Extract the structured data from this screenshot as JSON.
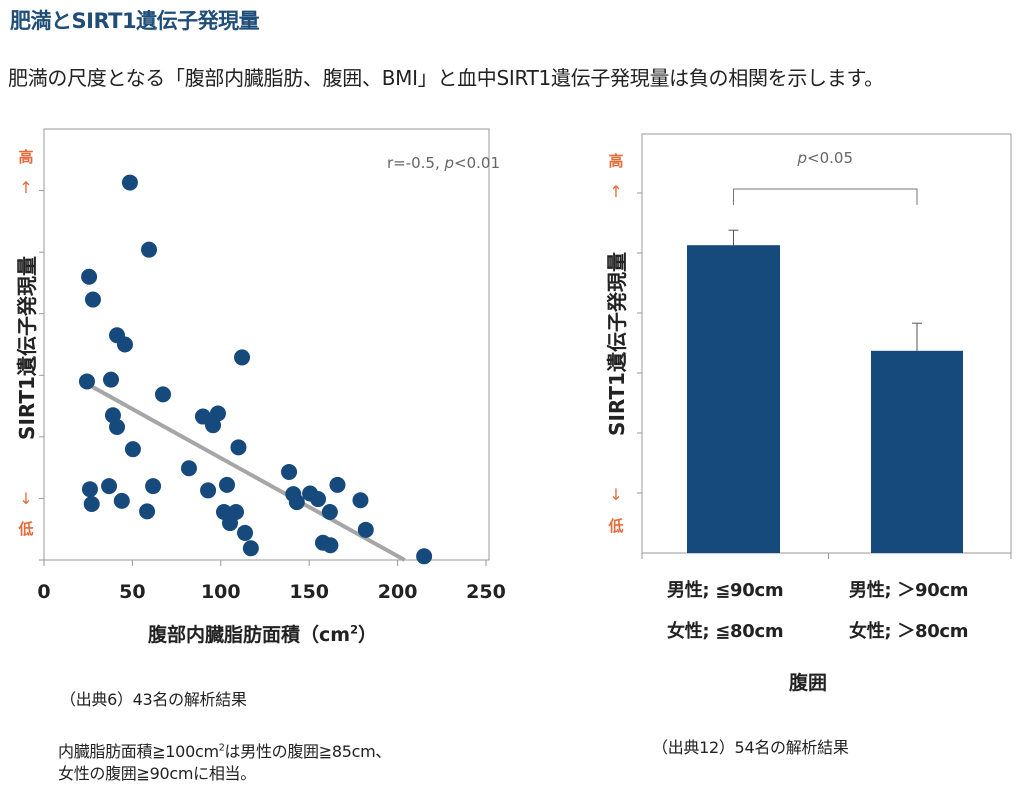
{
  "page": {
    "title": "肥満とSIRT1遺伝子発現量",
    "subtitle": "肥満の尺度となる「腹部内臓脂肪、腹囲、BMI」と血中SIRT1遺伝子発現量は負の相関を示します。"
  },
  "colors": {
    "title": "#1f4e79",
    "marker": "#174a7c",
    "bar": "#174a7c",
    "trendline": "#a6a6a6",
    "high_low": "#e46c3a",
    "frame": "#999999"
  },
  "chart_data": [
    {
      "type": "scatter",
      "title": "",
      "xlabel": "腹部内臓脂肪面積（cm²）",
      "ylabel": "SIRT1遺伝子発現量",
      "y_high_label": "高",
      "y_low_label": "低",
      "y_up_arrow": "↑",
      "y_down_arrow": "↓",
      "xlim": [
        0,
        250
      ],
      "ylim": [
        0,
        7
      ],
      "xticks": [
        0,
        50,
        100,
        150,
        200,
        250
      ],
      "yticks": [
        1,
        2,
        3,
        4,
        5,
        6
      ],
      "ytick_labels_shown": false,
      "grid": false,
      "annotation": "r=-0.5, p<0.01",
      "annotation_parts": {
        "r": "r=-0.5, ",
        "p_italic": "p",
        "p_rest": "<0.01"
      },
      "trendline": {
        "x": [
          25,
          204
        ],
        "y": [
          2.85,
          0
        ]
      },
      "points": [
        {
          "x": 48.6,
          "y": 6.13
        },
        {
          "x": 59.4,
          "y": 5.04
        },
        {
          "x": 25.5,
          "y": 4.6
        },
        {
          "x": 27.7,
          "y": 4.23
        },
        {
          "x": 41.3,
          "y": 3.65
        },
        {
          "x": 45.8,
          "y": 3.5
        },
        {
          "x": 112.0,
          "y": 3.29
        },
        {
          "x": 24.3,
          "y": 2.9
        },
        {
          "x": 37.9,
          "y": 2.93
        },
        {
          "x": 67.3,
          "y": 2.69
        },
        {
          "x": 39.0,
          "y": 2.35
        },
        {
          "x": 41.3,
          "y": 2.16
        },
        {
          "x": 89.9,
          "y": 2.33
        },
        {
          "x": 98.4,
          "y": 2.38
        },
        {
          "x": 95.6,
          "y": 2.19
        },
        {
          "x": 50.3,
          "y": 1.8
        },
        {
          "x": 110.0,
          "y": 1.83
        },
        {
          "x": 82.0,
          "y": 1.49
        },
        {
          "x": 26.0,
          "y": 1.15
        },
        {
          "x": 27.0,
          "y": 0.91
        },
        {
          "x": 36.8,
          "y": 1.2
        },
        {
          "x": 44.0,
          "y": 0.96
        },
        {
          "x": 61.7,
          "y": 1.2
        },
        {
          "x": 58.3,
          "y": 0.79
        },
        {
          "x": 92.8,
          "y": 1.13
        },
        {
          "x": 103.5,
          "y": 1.22
        },
        {
          "x": 101.8,
          "y": 0.78
        },
        {
          "x": 108.6,
          "y": 0.78
        },
        {
          "x": 105.2,
          "y": 0.6
        },
        {
          "x": 113.7,
          "y": 0.44
        },
        {
          "x": 117.0,
          "y": 0.19
        },
        {
          "x": 138.6,
          "y": 1.43
        },
        {
          "x": 141.0,
          "y": 1.07
        },
        {
          "x": 143.0,
          "y": 0.94
        },
        {
          "x": 155.0,
          "y": 0.99
        },
        {
          "x": 166.0,
          "y": 1.22
        },
        {
          "x": 161.7,
          "y": 0.78
        },
        {
          "x": 179.0,
          "y": 0.97
        },
        {
          "x": 182.0,
          "y": 0.49
        },
        {
          "x": 157.8,
          "y": 0.28
        },
        {
          "x": 162.0,
          "y": 0.24
        },
        {
          "x": 150.5,
          "y": 1.08
        },
        {
          "x": 215.0,
          "y": 0.06
        }
      ]
    },
    {
      "type": "bar",
      "title": "",
      "xlabel": "腹囲",
      "ylabel": "SIRT1遺伝子発現量",
      "y_high_label": "高",
      "y_low_label": "低",
      "y_up_arrow": "↑",
      "y_down_arrow": "↓",
      "ylim": [
        0,
        7
      ],
      "yticks": [
        1,
        2,
        3,
        4,
        5,
        6
      ],
      "ytick_labels_shown": false,
      "grid": false,
      "categories": [
        {
          "line1": "男性; ≦90cm",
          "line2": "女性; ≦80cm"
        },
        {
          "line1": "男性; ＞90cm",
          "line2": "女性; ＞80cm"
        }
      ],
      "values": [
        5.13,
        3.37
      ],
      "error_upper": [
        5.38,
        3.83
      ],
      "significance": {
        "label": "p<0.05",
        "p_italic": "p",
        "p_rest": "<0.05",
        "between": [
          0,
          1
        ],
        "level": 6.15
      }
    }
  ],
  "notes": {
    "left_source": "（出典6）43名の解析結果",
    "left_remark_line1_a": "内臓脂肪面積≧100cm",
    "left_remark_line1_sup": "2",
    "left_remark_line1_b": "は男性の腹囲≧85cm、",
    "left_remark_line2": "女性の腹囲≧90cmに相当。",
    "right_source": "（出典12）54名の解析結果"
  },
  "xlabel_parts": {
    "main": "腹部内臓脂肪面積（cm",
    "sup": "2",
    "close": "）"
  }
}
